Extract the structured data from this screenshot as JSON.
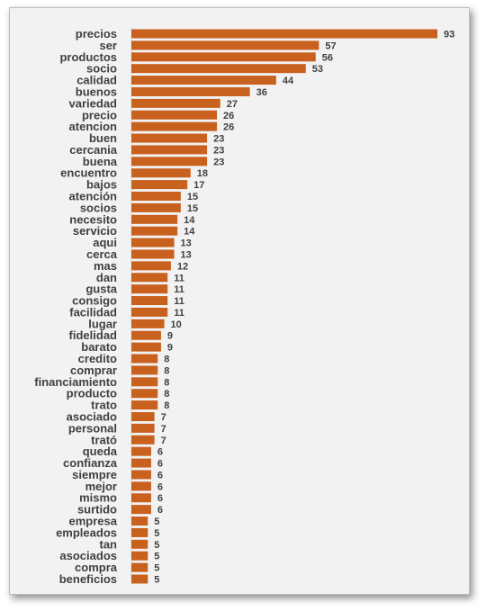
{
  "chart_data": {
    "type": "bar",
    "orientation": "horizontal",
    "bar_color": "#c8601e",
    "title": "",
    "xlabel": "",
    "ylabel": "",
    "grid": false,
    "data_labels": true,
    "categories": [
      "precios",
      "ser",
      "productos",
      "socio",
      "calidad",
      "buenos",
      "variedad",
      "precio",
      "atencion",
      "buen",
      "cercania",
      "buena",
      "encuentro",
      "bajos",
      "atención",
      "socios",
      "necesito",
      "servicio",
      "aqui",
      "cerca",
      "mas",
      "dan",
      "gusta",
      "consigo",
      "facilidad",
      "lugar",
      "fidelidad",
      "barato",
      "credito",
      "comprar",
      "financiamiento",
      "producto",
      "trato",
      "asociado",
      "personal",
      "trató",
      "queda",
      "confianza",
      "siempre",
      "mejor",
      "mismo",
      "surtido",
      "empresa",
      "empleados",
      "tan",
      "asociados",
      "compra",
      "beneficios"
    ],
    "values": [
      93,
      57,
      56,
      53,
      44,
      36,
      27,
      26,
      26,
      23,
      23,
      23,
      18,
      17,
      15,
      15,
      14,
      14,
      13,
      13,
      12,
      11,
      11,
      11,
      11,
      10,
      9,
      9,
      8,
      8,
      8,
      8,
      8,
      7,
      7,
      7,
      6,
      6,
      6,
      6,
      6,
      6,
      5,
      5,
      5,
      5,
      5,
      5
    ]
  }
}
